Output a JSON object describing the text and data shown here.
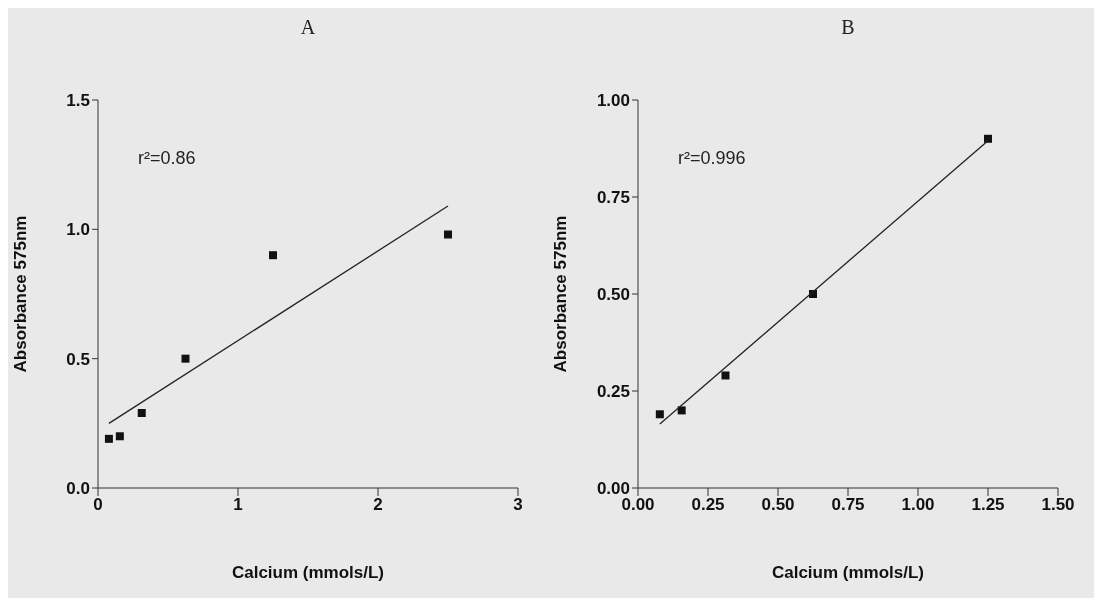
{
  "chart_data": [
    {
      "type": "scatter",
      "title": "A",
      "xlabel": "Calcium (mmols/L)",
      "ylabel": "Absorbance 575nm",
      "annotations": [
        "r²=0.86"
      ],
      "x": [
        0.078,
        0.156,
        0.3125,
        0.625,
        1.25,
        2.5
      ],
      "series": [
        {
          "color": "#111111",
          "marker": "square",
          "values": [
            0.19,
            0.2,
            0.29,
            0.5,
            0.9,
            0.98
          ]
        },
        {
          "type": "line",
          "color": "#222222",
          "x": [
            0.078,
            2.5
          ],
          "values": [
            0.25,
            1.09
          ]
        }
      ],
      "xlim": [
        0,
        3
      ],
      "xticks": [
        0,
        1,
        2,
        3
      ],
      "ylim": [
        0,
        1.5
      ],
      "yticks": [
        {
          "value": 0,
          "label": "0.0"
        },
        {
          "value": 0.5,
          "label": "0.5"
        },
        {
          "value": 1,
          "label": "1.0"
        },
        {
          "value": 1.5,
          "label": "1.5"
        }
      ]
    },
    {
      "type": "scatter",
      "title": "B",
      "xlabel": "Calcium (mmols/L)",
      "ylabel": "Absorbance 575nm",
      "annotations": [
        "r²=0.996"
      ],
      "x": [
        0.078,
        0.156,
        0.3125,
        0.625,
        1.25
      ],
      "series": [
        {
          "color": "#111111",
          "marker": "square",
          "values": [
            0.19,
            0.2,
            0.29,
            0.5,
            0.9
          ]
        },
        {
          "type": "line",
          "color": "#222222",
          "x": [
            0.078,
            1.25
          ],
          "values": [
            0.165,
            0.895
          ]
        }
      ],
      "xlim": [
        0,
        1.5
      ],
      "xticks": [
        {
          "value": 0,
          "label": "0.00"
        },
        {
          "value": 0.25,
          "label": "0.25"
        },
        {
          "value": 0.5,
          "label": "0.50"
        },
        {
          "value": 0.75,
          "label": "0.75"
        },
        {
          "value": 1,
          "label": "1.00"
        },
        {
          "value": 1.25,
          "label": "1.25"
        },
        {
          "value": 1.5,
          "label": "1.50"
        }
      ],
      "ylim": [
        0,
        1
      ],
      "yticks": [
        {
          "value": 0,
          "label": "0.00"
        },
        {
          "value": 0.25,
          "label": "0.25"
        },
        {
          "value": 0.5,
          "label": "0.50"
        },
        {
          "value": 0.75,
          "label": "0.75"
        },
        {
          "value": 1,
          "label": "1.00"
        }
      ]
    }
  ]
}
